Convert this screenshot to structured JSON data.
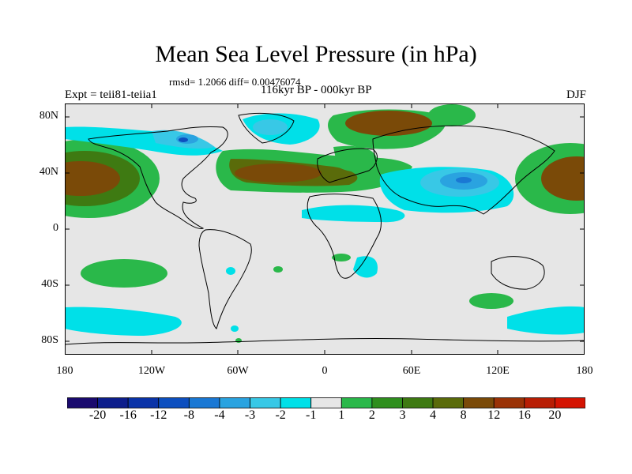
{
  "title": "Mean Sea Level Pressure (in hPa)",
  "stats": "rmsd= 1.2066 diff= 0.00476074",
  "experiment": "Expt = teii81-teiia1",
  "period": "116kyr BP - 000kyr BP",
  "season": "DJF",
  "y_ticks": [
    "80N",
    "40N",
    "0",
    "40S",
    "80S"
  ],
  "x_ticks": [
    "180",
    "120W",
    "60W",
    "0",
    "60E",
    "120E",
    "180"
  ],
  "colorbar": {
    "labels": [
      "-20",
      "-16",
      "-12",
      "-8",
      "-4",
      "-3",
      "-2",
      "-1",
      "1",
      "2",
      "3",
      "4",
      "8",
      "12",
      "16",
      "20"
    ],
    "colors": [
      "#1a0a6e",
      "#0d1e8c",
      "#0a33a8",
      "#0d4fbf",
      "#1a78d4",
      "#2aa3e0",
      "#38c8e6",
      "#00e0e8",
      "#e6e6e6",
      "#2ab84a",
      "#2f8f1e",
      "#3e7a12",
      "#5a6b0a",
      "#7a4a08",
      "#9a3206",
      "#b81e04",
      "#d41402"
    ]
  }
}
